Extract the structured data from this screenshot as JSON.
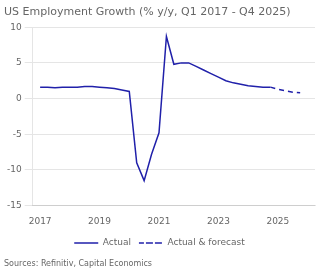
{
  "chart_data": {
    "type": "line",
    "title": "US Employment Growth (% y/y, Q1 2017 - Q4 2025)",
    "source": "Sources: Refinitiv, Capital Economics",
    "xlim": [
      2016.75,
      2026.25
    ],
    "xticks": [
      2017,
      2019,
      2021,
      2023,
      2025
    ],
    "ylim": [
      -15,
      10
    ],
    "yticks": [
      -15,
      -10,
      -5,
      0,
      5,
      10
    ],
    "grid": "y",
    "legend": "bottom",
    "series": [
      {
        "name": "Actual",
        "color": "#2020aa",
        "line_style": "solid",
        "x": [
          2017.0,
          2017.25,
          2017.5,
          2017.75,
          2018.0,
          2018.25,
          2018.5,
          2018.75,
          2019.0,
          2019.25,
          2019.5,
          2019.75,
          2020.0,
          2020.25,
          2020.5,
          2020.75,
          2021.0,
          2021.25,
          2021.5,
          2021.75,
          2022.0,
          2022.25,
          2022.5,
          2022.75,
          2023.0,
          2023.25,
          2023.5,
          2023.75,
          2024.0,
          2024.25,
          2024.5,
          2024.75
        ],
        "values": [
          1.6,
          1.6,
          1.5,
          1.6,
          1.6,
          1.6,
          1.7,
          1.7,
          1.6,
          1.5,
          1.4,
          1.2,
          1.0,
          -9.0,
          -11.5,
          -7.8,
          -4.8,
          8.7,
          4.8,
          5.0,
          5.0,
          4.5,
          4.0,
          3.5,
          3.0,
          2.5,
          2.2,
          2.0,
          1.8,
          1.7,
          1.6,
          1.6
        ]
      },
      {
        "name": "Actual & forecast",
        "color": "#2020aa",
        "line_style": "dashed",
        "x": [
          2024.75,
          2025.0,
          2025.25,
          2025.5,
          2025.75
        ],
        "values": [
          1.6,
          1.3,
          1.1,
          0.9,
          0.8
        ]
      }
    ]
  }
}
